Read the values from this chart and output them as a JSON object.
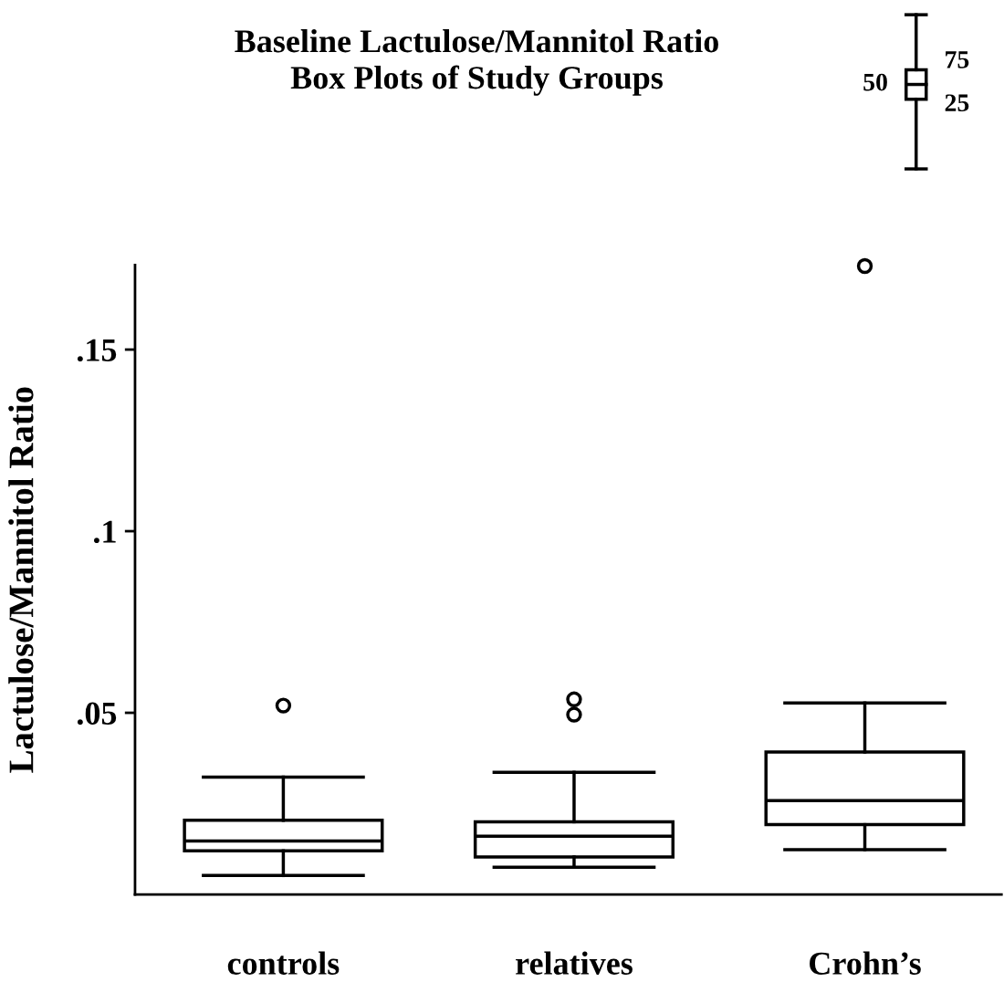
{
  "chart_data": {
    "type": "box",
    "title": "Baseline Lactulose/Mannitol Ratio",
    "subtitle": "Box Plots of Study Groups",
    "ylabel": "Lactulose/Mannitol Ratio",
    "categories": [
      "controls",
      "relatives",
      "Crohn’s"
    ],
    "boxes": [
      {
        "low": 0.0052,
        "q1": 0.012,
        "median": 0.0147,
        "q3": 0.0204,
        "high": 0.0323,
        "outliers": [
          0.052
        ]
      },
      {
        "low": 0.0075,
        "q1": 0.0103,
        "median": 0.016,
        "q3": 0.02,
        "high": 0.0336,
        "outliers": [
          0.0495,
          0.0537
        ]
      },
      {
        "low": 0.0123,
        "q1": 0.0192,
        "median": 0.0258,
        "q3": 0.0392,
        "high": 0.0527,
        "outliers": [
          0.173
        ]
      }
    ],
    "ylim": [
      0,
      0.1733
    ],
    "yticks": [
      {
        "value": 0.05,
        "label": ".05"
      },
      {
        "value": 0.1,
        "label": ".1"
      },
      {
        "value": 0.15,
        "label": ".15"
      }
    ],
    "annotations": [
      "75",
      "50",
      "25"
    ],
    "grid": false
  }
}
